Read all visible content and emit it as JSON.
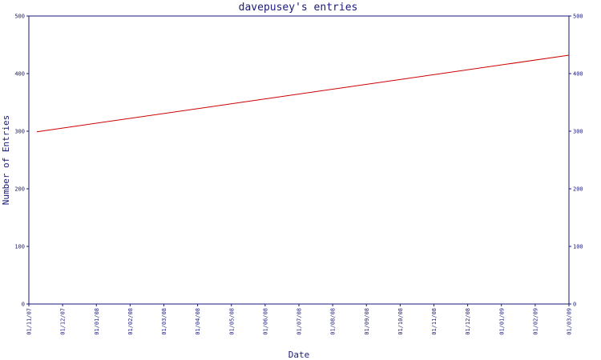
{
  "chart_data": {
    "type": "line",
    "title": "davepusey's entries",
    "xlabel": "Date",
    "ylabel": "Number of Entries",
    "x_ticks": [
      "01/11/07",
      "01/12/07",
      "01/01/08",
      "01/02/08",
      "01/03/08",
      "01/04/08",
      "01/05/08",
      "01/06/08",
      "01/07/08",
      "01/08/08",
      "01/09/08",
      "01/10/08",
      "01/11/08",
      "01/12/08",
      "01/01/09",
      "01/02/09",
      "01/03/09"
    ],
    "y_ticks": [
      0,
      100,
      200,
      300,
      400,
      500
    ],
    "ylim": [
      0,
      500
    ],
    "series": [
      {
        "color": "#cc0000",
        "points": [
          {
            "x": "01/11/07",
            "y": 299
          },
          {
            "x": "01/03/09",
            "y": 432
          }
        ]
      }
    ],
    "grid": false,
    "legend": "none"
  },
  "colors": {
    "axis": "#1a1a7a",
    "line": "#cc0000"
  }
}
